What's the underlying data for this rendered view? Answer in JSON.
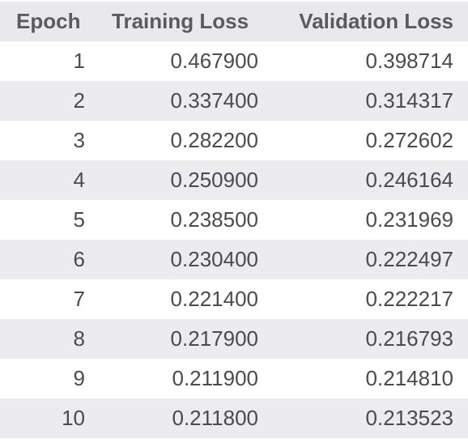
{
  "table": {
    "headers": {
      "epoch": "Epoch",
      "training_loss": "Training Loss",
      "validation_loss": "Validation Loss"
    },
    "rows": [
      {
        "epoch": "1",
        "training_loss": "0.467900",
        "validation_loss": "0.398714"
      },
      {
        "epoch": "2",
        "training_loss": "0.337400",
        "validation_loss": "0.314317"
      },
      {
        "epoch": "3",
        "training_loss": "0.282200",
        "validation_loss": "0.272602"
      },
      {
        "epoch": "4",
        "training_loss": "0.250900",
        "validation_loss": "0.246164"
      },
      {
        "epoch": "5",
        "training_loss": "0.238500",
        "validation_loss": "0.231969"
      },
      {
        "epoch": "6",
        "training_loss": "0.230400",
        "validation_loss": "0.222497"
      },
      {
        "epoch": "7",
        "training_loss": "0.221400",
        "validation_loss": "0.222217"
      },
      {
        "epoch": "8",
        "training_loss": "0.217900",
        "validation_loss": "0.216793"
      },
      {
        "epoch": "9",
        "training_loss": "0.211900",
        "validation_loss": "0.214810"
      },
      {
        "epoch": "10",
        "training_loss": "0.211800",
        "validation_loss": "0.213523"
      }
    ]
  },
  "colors": {
    "header_bg": "#e9e9ed",
    "stripe_bg": "#ececef",
    "text": "#4b4b4f"
  }
}
